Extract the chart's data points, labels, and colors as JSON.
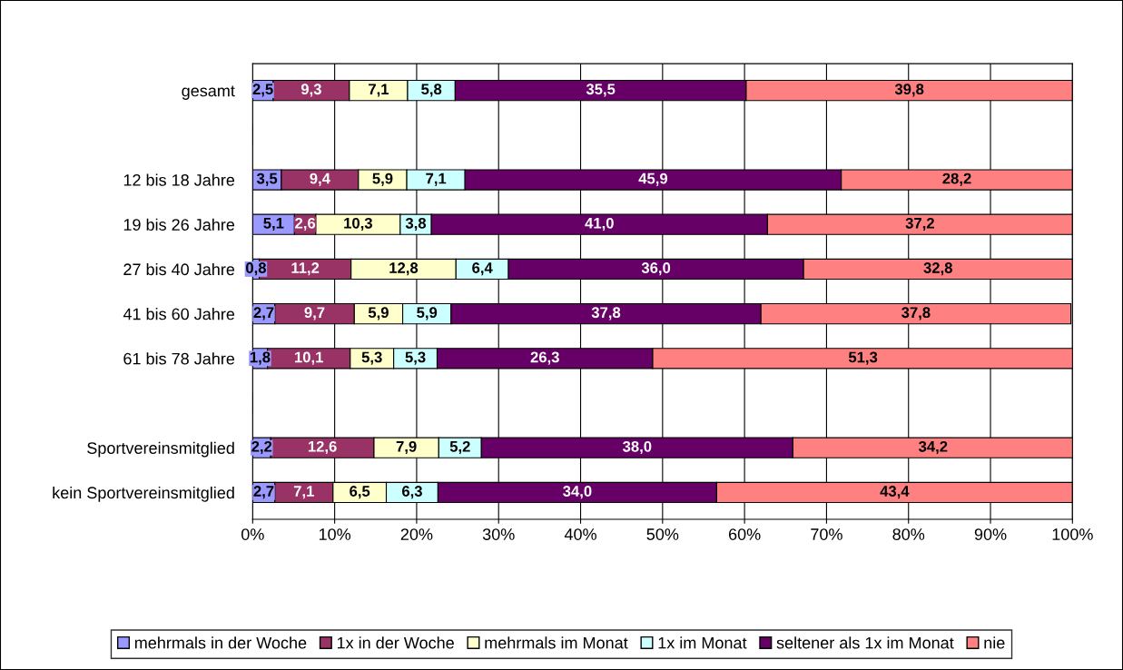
{
  "chart_data": {
    "type": "bar",
    "orientation": "horizontal",
    "stacked": true,
    "categories": [
      "gesamt",
      null,
      "12 bis 18 Jahre",
      "19 bis 26 Jahre",
      "27 bis 40 Jahre",
      "41 bis 60 Jahre",
      "61 bis 78 Jahre",
      null,
      "Sportvereinsmitglied",
      "kein Sportvereinsmitglied"
    ],
    "series": [
      {
        "name": "mehrmals in der Woche",
        "color": "#9999ff",
        "values": [
          2.5,
          null,
          3.5,
          5.1,
          0.8,
          2.7,
          1.8,
          null,
          2.2,
          2.7
        ],
        "value_labels": [
          "2,5",
          null,
          "3,5",
          "5,1",
          "0,8",
          "2,7",
          "1,8",
          null,
          "2,2",
          "2,7"
        ]
      },
      {
        "name": "1x in der Woche",
        "color": "#993366",
        "values": [
          9.3,
          null,
          9.4,
          2.6,
          11.2,
          9.7,
          10.1,
          null,
          12.6,
          7.1
        ],
        "value_labels": [
          "9,3",
          null,
          "9,4",
          "2,6",
          "11,2",
          "9,7",
          "10,1",
          null,
          "12,6",
          "7,1"
        ]
      },
      {
        "name": "mehrmals im Monat",
        "color": "#ffffcc",
        "values": [
          7.1,
          null,
          5.9,
          10.3,
          12.8,
          5.9,
          5.3,
          null,
          7.9,
          6.5
        ],
        "value_labels": [
          "7,1",
          null,
          "5,9",
          "10,3",
          "12,8",
          "5,9",
          "5,3",
          null,
          "7,9",
          "6,5"
        ]
      },
      {
        "name": "1x im Monat",
        "color": "#ccffff",
        "values": [
          5.8,
          null,
          7.1,
          3.8,
          6.4,
          5.9,
          5.3,
          null,
          5.2,
          6.3
        ],
        "value_labels": [
          "5,8",
          null,
          "7,1",
          "3,8",
          "6,4",
          "5,9",
          "5,3",
          null,
          "5,2",
          "6,3"
        ]
      },
      {
        "name": "seltener als 1x im Monat",
        "color": "#660066",
        "values": [
          35.5,
          null,
          45.9,
          41.0,
          36.0,
          37.8,
          26.3,
          null,
          38.0,
          34.0
        ],
        "value_labels": [
          "35,5",
          null,
          "45,9",
          "41,0",
          "36,0",
          "37,8",
          "26,3",
          null,
          "38,0",
          "34,0"
        ]
      },
      {
        "name": "nie",
        "color": "#ff8080",
        "values": [
          39.8,
          null,
          28.2,
          37.2,
          32.8,
          37.8,
          51.3,
          null,
          34.2,
          43.4
        ],
        "value_labels": [
          "39,8",
          null,
          "28,2",
          "37,2",
          "32,8",
          "37,8",
          "51,3",
          null,
          "34,2",
          "43,4"
        ]
      }
    ],
    "xlim": [
      0,
      100
    ],
    "xticks": [
      {
        "value": 0,
        "label": "0%"
      },
      {
        "value": 10,
        "label": "10%"
      },
      {
        "value": 20,
        "label": "20%"
      },
      {
        "value": 30,
        "label": "30%"
      },
      {
        "value": 40,
        "label": "40%"
      },
      {
        "value": 50,
        "label": "50%"
      },
      {
        "value": 60,
        "label": "60%"
      },
      {
        "value": 70,
        "label": "70%"
      },
      {
        "value": 80,
        "label": "80%"
      },
      {
        "value": 90,
        "label": "90%"
      },
      {
        "value": 100,
        "label": "100%"
      }
    ],
    "grid": "x",
    "legend": "bottom"
  }
}
